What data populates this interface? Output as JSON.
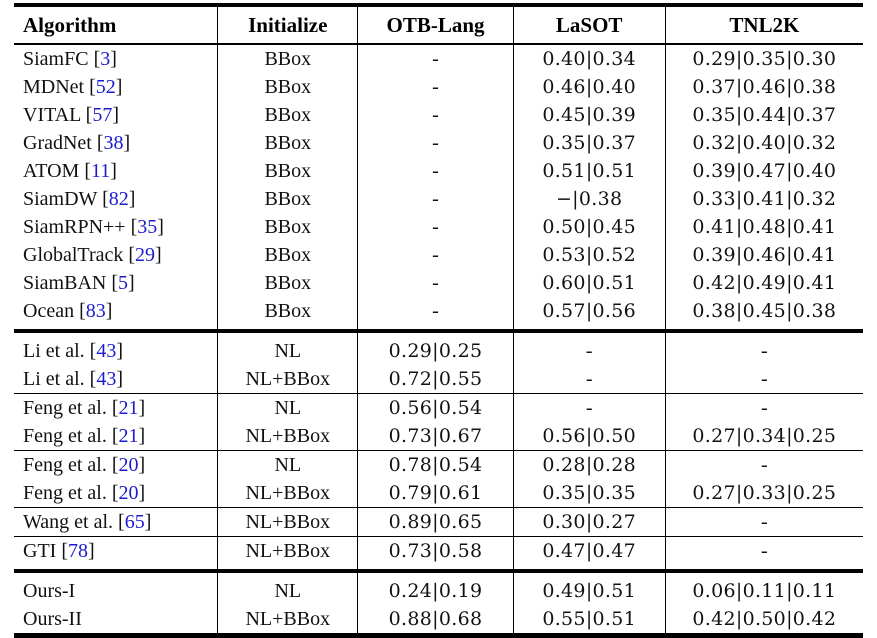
{
  "colors": {
    "citation_blue": "#1c1ccd",
    "rule_black": "#000000",
    "background": "#ffffff"
  },
  "header": {
    "columns": [
      "Algorithm",
      "Initialize",
      "OTB-Lang",
      "LaSOT",
      "TNL2K"
    ]
  },
  "sections": [
    {
      "name": "bbox-initialized-trackers",
      "groups": [
        [
          {
            "name": "SiamFC",
            "cite": "3",
            "init": "BBox",
            "otb": "-",
            "lasot": "0.40|0.34",
            "tnl2k": "0.29|0.35|0.30"
          },
          {
            "name": "MDNet",
            "cite": "52",
            "init": "BBox",
            "otb": "-",
            "lasot": "0.46|0.40",
            "tnl2k": "0.37|0.46|0.38"
          },
          {
            "name": "VITAL",
            "cite": "57",
            "init": "BBox",
            "otb": "-",
            "lasot": "0.45|0.39",
            "tnl2k": "0.35|0.44|0.37"
          },
          {
            "name": "GradNet",
            "cite": "38",
            "init": "BBox",
            "otb": "-",
            "lasot": "0.35|0.37",
            "tnl2k": "0.32|0.40|0.32"
          },
          {
            "name": "ATOM",
            "cite": "11",
            "init": "BBox",
            "otb": "-",
            "lasot": "0.51|0.51",
            "tnl2k": "0.39|0.47|0.40"
          },
          {
            "name": "SiamDW",
            "cite": "82",
            "init": "BBox",
            "otb": "-",
            "lasot": "−|0.38",
            "tnl2k": "0.33|0.41|0.32"
          },
          {
            "name": "SiamRPN++",
            "cite": "35",
            "init": "BBox",
            "otb": "-",
            "lasot": "0.50|0.45",
            "tnl2k": "0.41|0.48|0.41"
          },
          {
            "name": "GlobalTrack",
            "cite": "29",
            "init": "BBox",
            "otb": "-",
            "lasot": "0.53|0.52",
            "tnl2k": "0.39|0.46|0.41"
          },
          {
            "name": "SiamBAN",
            "cite": "5",
            "init": "BBox",
            "otb": "-",
            "lasot": "0.60|0.51",
            "tnl2k": "0.42|0.49|0.41"
          },
          {
            "name": "Ocean",
            "cite": "83",
            "init": "BBox",
            "otb": "-",
            "lasot": "0.57|0.56",
            "tnl2k": "0.38|0.45|0.38"
          }
        ]
      ]
    },
    {
      "name": "nl-initialized-trackers",
      "groups": [
        [
          {
            "name": "Li et al.",
            "cite": "43",
            "init": "NL",
            "otb": "0.29|0.25",
            "lasot": "-",
            "tnl2k": "-"
          },
          {
            "name": "Li et al.",
            "cite": "43",
            "init": "NL+BBox",
            "otb": "0.72|0.55",
            "lasot": "-",
            "tnl2k": "-"
          }
        ],
        [
          {
            "name": "Feng et al.",
            "cite": "21",
            "init": "NL",
            "otb": "0.56|0.54",
            "lasot": "-",
            "tnl2k": "-"
          },
          {
            "name": "Feng et al.",
            "cite": "21",
            "init": "NL+BBox",
            "otb": "0.73|0.67",
            "lasot": "0.56|0.50",
            "tnl2k": "0.27|0.34|0.25"
          }
        ],
        [
          {
            "name": "Feng et al.",
            "cite": "20",
            "init": "NL",
            "otb": "0.78|0.54",
            "lasot": "0.28|0.28",
            "tnl2k": "-"
          },
          {
            "name": "Feng et al.",
            "cite": "20",
            "init": "NL+BBox",
            "otb": "0.79|0.61",
            "lasot": "0.35|0.35",
            "tnl2k": "0.27|0.33|0.25"
          }
        ],
        [
          {
            "name": "Wang et al.",
            "cite": "65",
            "init": "NL+BBox",
            "otb": "0.89|0.65",
            "lasot": "0.30|0.27",
            "tnl2k": "-"
          }
        ],
        [
          {
            "name": "GTI",
            "cite": "78",
            "init": "NL+BBox",
            "otb": "0.73|0.58",
            "lasot": "0.47|0.47",
            "tnl2k": "-"
          }
        ]
      ]
    },
    {
      "name": "ours",
      "groups": [
        [
          {
            "name": "Ours-I",
            "cite": null,
            "init": "NL",
            "otb": "0.24|0.19",
            "lasot": "0.49|0.51",
            "tnl2k": "0.06|0.11|0.11"
          },
          {
            "name": "Ours-II",
            "cite": null,
            "init": "NL+BBox",
            "otb": "0.88|0.68",
            "lasot": "0.55|0.51",
            "tnl2k": "0.42|0.50|0.42"
          }
        ]
      ]
    }
  ]
}
